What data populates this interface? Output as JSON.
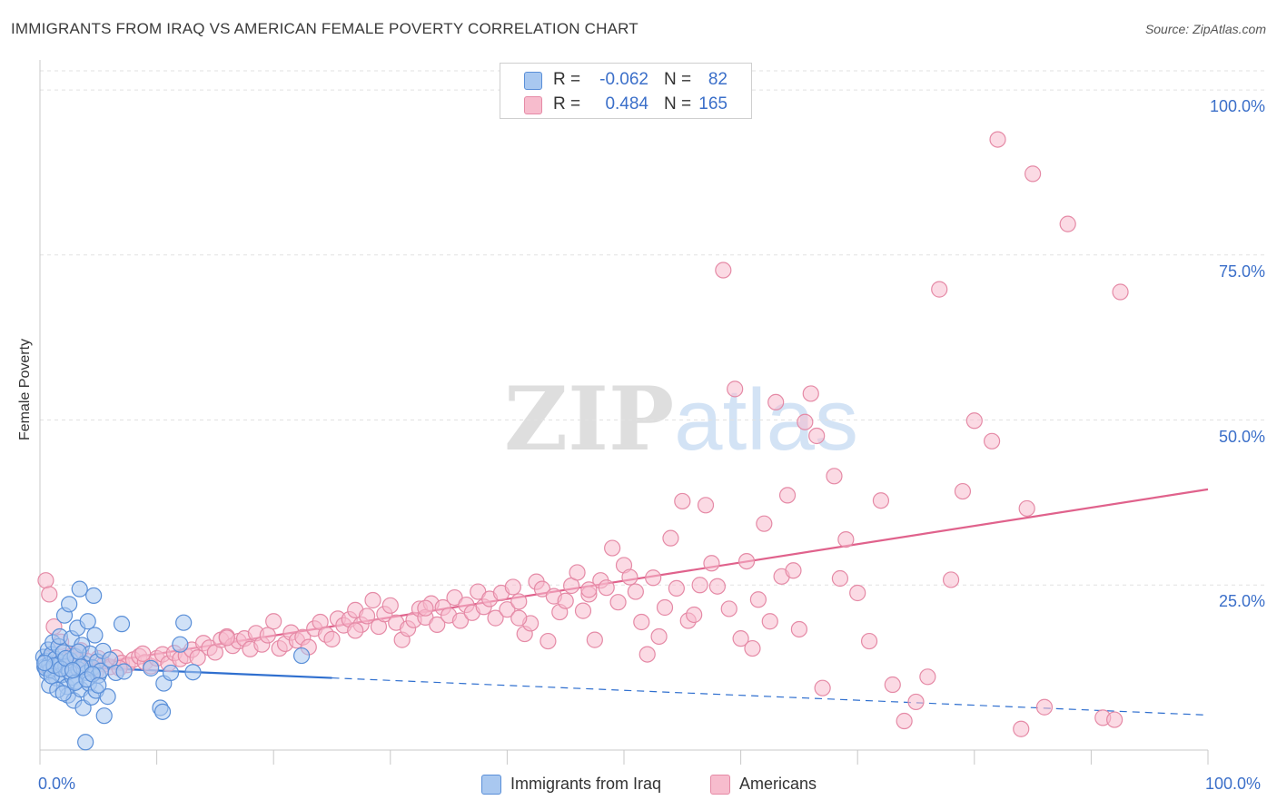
{
  "header": {
    "title": "IMMIGRANTS FROM IRAQ VS AMERICAN FEMALE POVERTY CORRELATION CHART",
    "source": "Source: ZipAtlas.com"
  },
  "watermark": {
    "zip": "ZIP",
    "atlas": "atlas"
  },
  "legend_top": {
    "rows": [
      {
        "r_label": "R =",
        "r_value": "-0.062",
        "n_label": "N =",
        "n_value": "82",
        "color": "#a9c8f0"
      },
      {
        "r_label": "R =",
        "r_value": "0.484",
        "n_label": "N =",
        "n_value": "165",
        "color": "#f7bccd"
      }
    ]
  },
  "legend_bottom": {
    "items": [
      {
        "label": "Immigrants from Iraq",
        "color": "#a9c8f0"
      },
      {
        "label": "Americans",
        "color": "#f7bccd"
      }
    ]
  },
  "colors": {
    "blue_fill": "#a9c8f0",
    "blue_stroke": "#5a8fd8",
    "blue_line": "#2f6fcf",
    "pink_fill": "#f7bccd",
    "pink_stroke": "#e58aa6",
    "pink_line": "#e0628c",
    "grid": "#e2e2e2",
    "axis_text": "#3b6fc9"
  },
  "chart_data": {
    "type": "scatter",
    "title": "IMMIGRANTS FROM IRAQ VS AMERICAN FEMALE POVERTY CORRELATION CHART",
    "xlabel": "",
    "ylabel": "Female Poverty",
    "xlim": [
      0,
      100
    ],
    "ylim": [
      0,
      104
    ],
    "x_tick_labels": {
      "left": "0.0%",
      "right": "100.0%"
    },
    "y_ticks": [
      {
        "value": 25,
        "label": "25.0%"
      },
      {
        "value": 50,
        "label": "50.0%"
      },
      {
        "value": 75,
        "label": "75.0%"
      },
      {
        "value": 100,
        "label": "100.0%"
      }
    ],
    "series": [
      {
        "name": "Immigrants from Iraq",
        "r": -0.062,
        "n": 82,
        "trend": {
          "x0": 0,
          "y0": 12.8,
          "x1": 100,
          "y1": 5.3,
          "solid_until_x": 25
        },
        "points": [
          [
            0.3,
            14.1
          ],
          [
            0.4,
            12.6
          ],
          [
            0.5,
            13.5
          ],
          [
            0.6,
            11.8
          ],
          [
            0.7,
            15.2
          ],
          [
            0.8,
            13.0
          ],
          [
            0.9,
            12.1
          ],
          [
            1.0,
            14.5
          ],
          [
            1.1,
            16.3
          ],
          [
            1.2,
            12.4
          ],
          [
            1.3,
            13.8
          ],
          [
            1.4,
            10.9
          ],
          [
            1.5,
            12.9
          ],
          [
            1.6,
            15.7
          ],
          [
            1.7,
            17.2
          ],
          [
            1.8,
            13.3
          ],
          [
            1.9,
            11.4
          ],
          [
            2.0,
            14.8
          ],
          [
            2.1,
            20.4
          ],
          [
            2.2,
            12.7
          ],
          [
            2.3,
            9.6
          ],
          [
            2.4,
            8.3
          ],
          [
            2.5,
            22.1
          ],
          [
            2.6,
            13.6
          ],
          [
            2.7,
            16.9
          ],
          [
            2.8,
            11.0
          ],
          [
            2.9,
            7.5
          ],
          [
            3.0,
            14.2
          ],
          [
            3.1,
            10.4
          ],
          [
            3.2,
            18.5
          ],
          [
            3.3,
            12.2
          ],
          [
            3.4,
            24.4
          ],
          [
            3.5,
            9.2
          ],
          [
            3.6,
            15.9
          ],
          [
            3.7,
            6.4
          ],
          [
            3.8,
            13.1
          ],
          [
            3.9,
            1.2
          ],
          [
            4.0,
            11.7
          ],
          [
            4.1,
            19.5
          ],
          [
            4.2,
            10.1
          ],
          [
            4.3,
            14.6
          ],
          [
            4.4,
            8.0
          ],
          [
            4.5,
            12.5
          ],
          [
            4.6,
            23.4
          ],
          [
            4.7,
            17.4
          ],
          [
            4.8,
            9.0
          ],
          [
            4.9,
            13.4
          ],
          [
            5.0,
            11.3
          ],
          [
            5.2,
            12.0
          ],
          [
            5.4,
            15.0
          ],
          [
            5.5,
            5.2
          ],
          [
            5.8,
            8.1
          ],
          [
            6.0,
            13.7
          ],
          [
            6.5,
            11.7
          ],
          [
            7.0,
            19.1
          ],
          [
            7.2,
            11.9
          ],
          [
            9.5,
            12.4
          ],
          [
            10.3,
            6.4
          ],
          [
            10.5,
            5.8
          ],
          [
            10.6,
            10.1
          ],
          [
            11.2,
            11.7
          ],
          [
            12.0,
            16.0
          ],
          [
            12.3,
            19.3
          ],
          [
            13.1,
            11.8
          ],
          [
            22.4,
            14.3
          ],
          [
            0.5,
            12.4
          ],
          [
            0.8,
            9.8
          ],
          [
            1.0,
            11.2
          ],
          [
            1.5,
            9.1
          ],
          [
            2.0,
            8.6
          ],
          [
            2.5,
            11.9
          ],
          [
            3.0,
            10.2
          ],
          [
            3.5,
            12.6
          ],
          [
            4.0,
            10.7
          ],
          [
            4.5,
            11.5
          ],
          [
            5.0,
            9.8
          ],
          [
            1.2,
            12.8
          ],
          [
            1.8,
            12.3
          ],
          [
            2.2,
            13.9
          ],
          [
            2.8,
            12.1
          ],
          [
            3.3,
            14.9
          ],
          [
            0.4,
            13.2
          ]
        ]
      },
      {
        "name": "Americans",
        "r": 0.484,
        "n": 165,
        "trend": {
          "x0": 0,
          "y0": 11.8,
          "x1": 100,
          "y1": 39.5
        },
        "points": [
          [
            0.5,
            25.7
          ],
          [
            0.8,
            23.6
          ],
          [
            1.2,
            18.7
          ],
          [
            1.8,
            16.4
          ],
          [
            2.5,
            14.1
          ],
          [
            3.0,
            12.8
          ],
          [
            3.5,
            15.1
          ],
          [
            4.0,
            13.5
          ],
          [
            4.5,
            12.2
          ],
          [
            5.0,
            13.9
          ],
          [
            5.5,
            13.0
          ],
          [
            6.0,
            12.6
          ],
          [
            6.5,
            14.0
          ],
          [
            7.0,
            13.2
          ],
          [
            7.5,
            12.9
          ],
          [
            8.0,
            13.7
          ],
          [
            8.5,
            14.2
          ],
          [
            9.0,
            13.3
          ],
          [
            9.5,
            12.7
          ],
          [
            10.0,
            13.9
          ],
          [
            10.5,
            14.5
          ],
          [
            11.0,
            13.1
          ],
          [
            11.5,
            14.7
          ],
          [
            12.0,
            13.8
          ],
          [
            12.5,
            14.3
          ],
          [
            13.0,
            15.2
          ],
          [
            13.5,
            14.0
          ],
          [
            14.0,
            16.2
          ],
          [
            14.5,
            15.5
          ],
          [
            15.0,
            14.8
          ],
          [
            15.5,
            16.7
          ],
          [
            16.0,
            17.2
          ],
          [
            16.5,
            15.8
          ],
          [
            17.0,
            16.5
          ],
          [
            17.5,
            16.9
          ],
          [
            18.0,
            15.3
          ],
          [
            18.5,
            17.7
          ],
          [
            19.0,
            16.0
          ],
          [
            19.5,
            17.4
          ],
          [
            20.0,
            19.5
          ],
          [
            20.5,
            15.4
          ],
          [
            21.0,
            16.1
          ],
          [
            21.5,
            17.8
          ],
          [
            22.0,
            16.6
          ],
          [
            22.5,
            17.1
          ],
          [
            23.0,
            15.6
          ],
          [
            23.5,
            18.4
          ],
          [
            24.0,
            19.4
          ],
          [
            24.5,
            17.5
          ],
          [
            25.0,
            16.8
          ],
          [
            25.5,
            19.9
          ],
          [
            26.0,
            18.9
          ],
          [
            26.5,
            19.8
          ],
          [
            27.0,
            21.2
          ],
          [
            27.5,
            19.0
          ],
          [
            28.0,
            20.3
          ],
          [
            28.5,
            22.7
          ],
          [
            29.0,
            18.7
          ],
          [
            29.5,
            20.6
          ],
          [
            30.0,
            21.9
          ],
          [
            30.5,
            19.3
          ],
          [
            31.0,
            16.7
          ],
          [
            31.5,
            18.4
          ],
          [
            32.0,
            19.7
          ],
          [
            32.5,
            21.4
          ],
          [
            33.0,
            20.1
          ],
          [
            33.5,
            22.2
          ],
          [
            34.0,
            19.0
          ],
          [
            34.5,
            21.6
          ],
          [
            35.0,
            20.4
          ],
          [
            35.5,
            23.1
          ],
          [
            36.0,
            19.6
          ],
          [
            36.5,
            22.0
          ],
          [
            37.0,
            20.8
          ],
          [
            37.5,
            24.0
          ],
          [
            38.0,
            21.7
          ],
          [
            38.5,
            22.9
          ],
          [
            39.0,
            20.0
          ],
          [
            39.5,
            23.8
          ],
          [
            40.0,
            21.3
          ],
          [
            40.5,
            24.7
          ],
          [
            41.0,
            22.5
          ],
          [
            41.5,
            17.6
          ],
          [
            42.0,
            19.2
          ],
          [
            42.5,
            25.5
          ],
          [
            43.0,
            24.4
          ],
          [
            43.5,
            16.5
          ],
          [
            44.0,
            23.3
          ],
          [
            44.5,
            20.9
          ],
          [
            45.0,
            22.6
          ],
          [
            45.5,
            24.9
          ],
          [
            46.0,
            26.9
          ],
          [
            46.5,
            21.1
          ],
          [
            47.0,
            23.6
          ],
          [
            47.5,
            16.7
          ],
          [
            48.0,
            25.7
          ],
          [
            48.5,
            24.6
          ],
          [
            49.0,
            30.6
          ],
          [
            49.5,
            22.4
          ],
          [
            50.0,
            28.0
          ],
          [
            50.5,
            26.2
          ],
          [
            51.0,
            24.0
          ],
          [
            51.5,
            19.4
          ],
          [
            52.0,
            14.5
          ],
          [
            52.5,
            26.1
          ],
          [
            53.0,
            17.2
          ],
          [
            53.5,
            21.6
          ],
          [
            54.0,
            32.1
          ],
          [
            54.5,
            24.5
          ],
          [
            55.0,
            37.7
          ],
          [
            55.5,
            19.6
          ],
          [
            56.0,
            20.5
          ],
          [
            56.5,
            25.0
          ],
          [
            57.0,
            37.1
          ],
          [
            57.5,
            28.3
          ],
          [
            58.0,
            24.8
          ],
          [
            58.5,
            72.7
          ],
          [
            59.0,
            21.4
          ],
          [
            59.5,
            54.7
          ],
          [
            60.0,
            16.9
          ],
          [
            60.5,
            28.6
          ],
          [
            61.0,
            15.4
          ],
          [
            61.5,
            22.8
          ],
          [
            62.0,
            34.3
          ],
          [
            62.5,
            19.5
          ],
          [
            63.0,
            52.7
          ],
          [
            63.5,
            26.3
          ],
          [
            64.0,
            38.6
          ],
          [
            64.5,
            27.2
          ],
          [
            65.0,
            18.3
          ],
          [
            65.5,
            49.7
          ],
          [
            66.0,
            54.0
          ],
          [
            66.5,
            47.6
          ],
          [
            67.0,
            9.4
          ],
          [
            68.0,
            41.5
          ],
          [
            68.5,
            26.0
          ],
          [
            69.0,
            31.9
          ],
          [
            70.0,
            23.8
          ],
          [
            71.0,
            16.5
          ],
          [
            72.0,
            37.8
          ],
          [
            73.0,
            9.9
          ],
          [
            74.0,
            4.4
          ],
          [
            75.0,
            7.3
          ],
          [
            76.0,
            11.1
          ],
          [
            77.0,
            69.8
          ],
          [
            78.0,
            25.8
          ],
          [
            79.0,
            39.2
          ],
          [
            80.0,
            49.9
          ],
          [
            81.5,
            46.8
          ],
          [
            82.0,
            92.5
          ],
          [
            84.0,
            3.2
          ],
          [
            84.5,
            36.6
          ],
          [
            85.0,
            87.3
          ],
          [
            86.0,
            6.5
          ],
          [
            88.0,
            79.7
          ],
          [
            91.0,
            4.9
          ],
          [
            92.0,
            4.6
          ],
          [
            92.5,
            69.4
          ],
          [
            2.0,
            12.3
          ],
          [
            3.2,
            13.6
          ],
          [
            4.8,
            11.8
          ],
          [
            6.8,
            12.4
          ],
          [
            8.8,
            14.6
          ],
          [
            0.9,
            13.9
          ],
          [
            2.8,
            14.4
          ],
          [
            16.0,
            17.0
          ],
          [
            27.0,
            18.1
          ],
          [
            33.0,
            21.5
          ],
          [
            41.0,
            20.0
          ],
          [
            47.0,
            24.3
          ]
        ]
      }
    ]
  }
}
